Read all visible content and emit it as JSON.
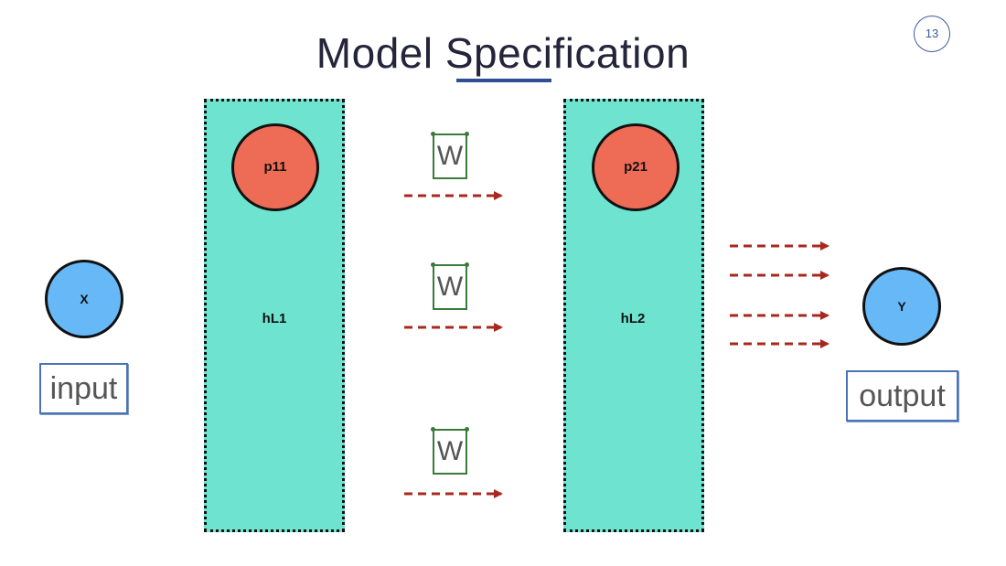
{
  "slide": {
    "title": "Model Specification",
    "page_number": "13"
  },
  "nodes": {
    "input_node": "X",
    "output_node": "Y",
    "layer1_node": "p11",
    "layer2_node": "p21"
  },
  "layers": {
    "layer1_label": "hL1",
    "layer2_label": "hL2"
  },
  "weights": [
    "W",
    "W",
    "W"
  ],
  "labels": {
    "input": "input",
    "output": "output"
  },
  "colors": {
    "layer_fill": "#6ee3cf",
    "neuron_red": "#ee6c56",
    "neuron_blue": "#66b8f7",
    "arrow": "#a8281e",
    "weight_border": "#3a7a3a",
    "label_border": "#4a74b4",
    "title_underline": "#2f4f95"
  }
}
